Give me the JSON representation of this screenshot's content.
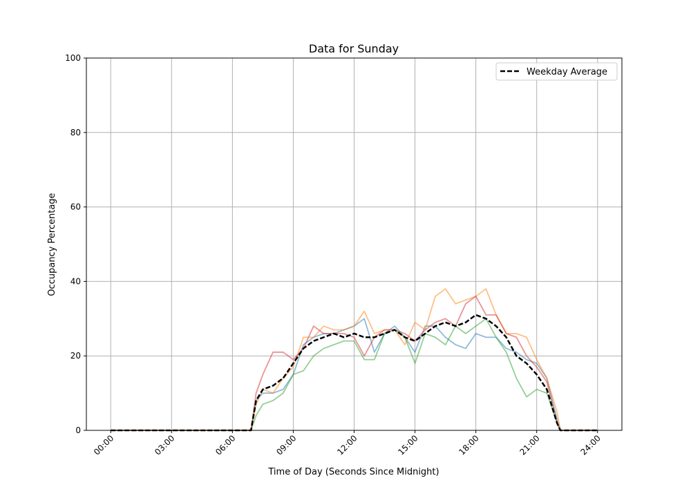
{
  "chart_data": {
    "type": "line",
    "title": "Data for Sunday",
    "xlabel": "Time of Day (Seconds Since Midnight)",
    "ylabel": "Occupancy Percentage",
    "xlim": [
      "-01:12",
      "25:12"
    ],
    "ylim": [
      0,
      100
    ],
    "grid": true,
    "legend_position": "top-right",
    "xticks": [
      "00:00",
      "03:00",
      "06:00",
      "09:00",
      "12:00",
      "15:00",
      "18:00",
      "21:00",
      "24:00"
    ],
    "yticks": [
      0,
      20,
      40,
      60,
      80,
      100
    ],
    "x": [
      "00:00",
      "06:55",
      "07:10",
      "07:30",
      "08:00",
      "08:30",
      "09:00",
      "09:30",
      "10:00",
      "10:30",
      "11:00",
      "11:30",
      "12:00",
      "12:30",
      "13:00",
      "13:30",
      "14:00",
      "14:30",
      "15:00",
      "15:30",
      "16:00",
      "16:30",
      "17:00",
      "17:30",
      "18:00",
      "18:30",
      "19:00",
      "19:30",
      "20:00",
      "20:30",
      "21:00",
      "21:30",
      "22:00",
      "22:10",
      "24:00"
    ],
    "series": [
      {
        "color": "#1f77b4",
        "alpha": 0.5,
        "style": "solid",
        "values": [
          0,
          0,
          8,
          10,
          10,
          11,
          15,
          23,
          25,
          26,
          26,
          27,
          28,
          30,
          21,
          26,
          28,
          25,
          21,
          28,
          28,
          25,
          23,
          22,
          26,
          25,
          25,
          22,
          21,
          19,
          18,
          14,
          3,
          0,
          0
        ]
      },
      {
        "color": "#ff7f0e",
        "alpha": 0.5,
        "style": "solid",
        "values": [
          0,
          0,
          7,
          11,
          10,
          14,
          17,
          25,
          25,
          28,
          27,
          27,
          28,
          32,
          26,
          27,
          27,
          23,
          29,
          27,
          36,
          38,
          34,
          35,
          36,
          38,
          31,
          26,
          26,
          25,
          19,
          14,
          5,
          0,
          0
        ]
      },
      {
        "color": "#2ca02c",
        "alpha": 0.5,
        "style": "solid",
        "values": [
          0,
          0,
          4,
          7,
          8,
          10,
          15,
          16,
          20,
          22,
          23,
          24,
          24,
          19,
          19,
          26,
          27,
          25,
          18,
          26,
          25,
          23,
          28,
          26,
          28,
          30,
          25,
          21,
          14,
          9,
          11,
          10,
          2,
          0,
          0
        ]
      },
      {
        "color": "#d62728",
        "alpha": 0.5,
        "style": "solid",
        "values": [
          0,
          0,
          10,
          15,
          21,
          21,
          19,
          22,
          28,
          26,
          26,
          26,
          25,
          20,
          25,
          27,
          27,
          26,
          24,
          27,
          29,
          30,
          28,
          34,
          36,
          31,
          31,
          26,
          25,
          20,
          17,
          13,
          2,
          0,
          0
        ]
      },
      {
        "name": "Weekday Average",
        "color": "#000000",
        "alpha": 1,
        "style": "dashed",
        "values": [
          0,
          0,
          8,
          11,
          12,
          14,
          18,
          22,
          24,
          25,
          26,
          25,
          26,
          25,
          25,
          26,
          27,
          25,
          24,
          26,
          28,
          29,
          28,
          29,
          31,
          30,
          28,
          25,
          20,
          18,
          15,
          11,
          2,
          0,
          0
        ]
      }
    ]
  }
}
